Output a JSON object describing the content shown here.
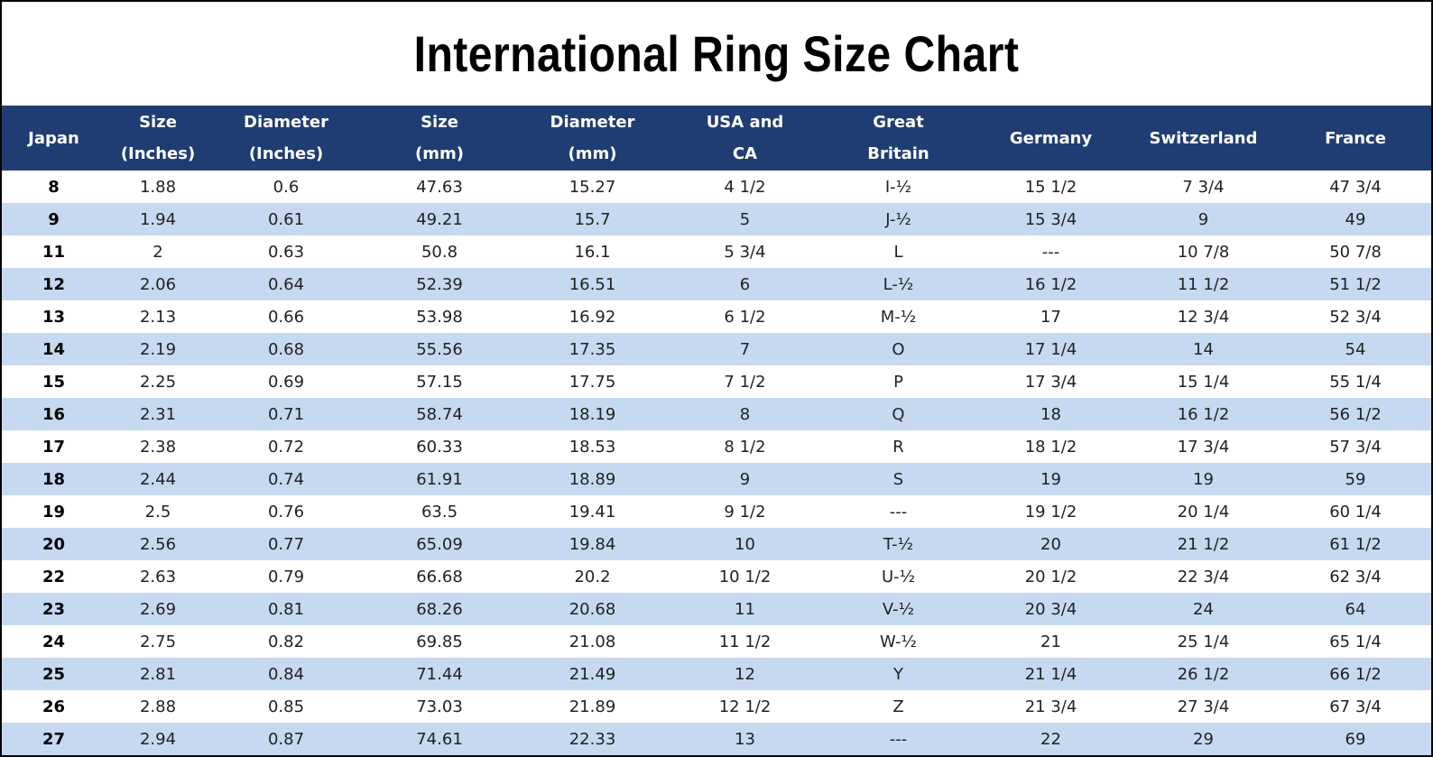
{
  "title": "International Ring Size Chart",
  "table": {
    "header": [
      [
        "Japan"
      ],
      [
        "Size",
        "(Inches)"
      ],
      [
        "Diameter",
        "(Inches)"
      ],
      [
        "Size",
        "(mm)"
      ],
      [
        "Diameter",
        "(mm)"
      ],
      [
        "USA and",
        "CA"
      ],
      [
        "Great",
        "Britain"
      ],
      [
        "Germany"
      ],
      [
        "Switzerland"
      ],
      [
        "France"
      ]
    ],
    "rows": [
      [
        "8",
        "1.88",
        "0.6",
        "47.63",
        "15.27",
        "4 1/2",
        "I-½",
        "15 1/2",
        "7 3/4",
        "47 3/4"
      ],
      [
        "9",
        "1.94",
        "0.61",
        "49.21",
        "15.7",
        "5",
        "J-½",
        "15 3/4",
        "9",
        "49"
      ],
      [
        "11",
        "2",
        "0.63",
        "50.8",
        "16.1",
        "5 3/4",
        "L",
        "---",
        "10 7/8",
        "50 7/8"
      ],
      [
        "12",
        "2.06",
        "0.64",
        "52.39",
        "16.51",
        "6",
        "L-½",
        "16 1/2",
        "11 1/2",
        "51 1/2"
      ],
      [
        "13",
        "2.13",
        "0.66",
        "53.98",
        "16.92",
        "6 1/2",
        "M-½",
        "17",
        "12 3/4",
        "52 3/4"
      ],
      [
        "14",
        "2.19",
        "0.68",
        "55.56",
        "17.35",
        "7",
        "O",
        "17 1/4",
        "14",
        "54"
      ],
      [
        "15",
        "2.25",
        "0.69",
        "57.15",
        "17.75",
        "7 1/2",
        "P",
        "17 3/4",
        "15 1/4",
        "55 1/4"
      ],
      [
        "16",
        "2.31",
        "0.71",
        "58.74",
        "18.19",
        "8",
        "Q",
        "18",
        "16 1/2",
        "56 1/2"
      ],
      [
        "17",
        "2.38",
        "0.72",
        "60.33",
        "18.53",
        "8 1/2",
        "R",
        "18 1/2",
        "17 3/4",
        "57 3/4"
      ],
      [
        "18",
        "2.44",
        "0.74",
        "61.91",
        "18.89",
        "9",
        "S",
        "19",
        "19",
        "59"
      ],
      [
        "19",
        "2.5",
        "0.76",
        "63.5",
        "19.41",
        "9 1/2",
        "---",
        "19 1/2",
        "20 1/4",
        "60 1/4"
      ],
      [
        "20",
        "2.56",
        "0.77",
        "65.09",
        "19.84",
        "10",
        "T-½",
        "20",
        "21 1/2",
        "61 1/2"
      ],
      [
        "22",
        "2.63",
        "0.79",
        "66.68",
        "20.2",
        "10 1/2",
        "U-½",
        "20 1/2",
        "22 3/4",
        "62 3/4"
      ],
      [
        "23",
        "2.69",
        "0.81",
        "68.26",
        "20.68",
        "11",
        "V-½",
        "20 3/4",
        "24",
        "64"
      ],
      [
        "24",
        "2.75",
        "0.82",
        "69.85",
        "21.08",
        "11 1/2",
        "W-½",
        "21",
        "25 1/4",
        "65 1/4"
      ],
      [
        "25",
        "2.81",
        "0.84",
        "71.44",
        "21.49",
        "12",
        "Y",
        "21 1/4",
        "26 1/2",
        "66 1/2"
      ],
      [
        "26",
        "2.88",
        "0.85",
        "73.03",
        "21.89",
        "12 1/2",
        "Z",
        "21 3/4",
        "27 3/4",
        "67 3/4"
      ],
      [
        "27",
        "2.94",
        "0.87",
        "74.61",
        "22.33",
        "13",
        "---",
        "22",
        "29",
        "69"
      ]
    ]
  }
}
